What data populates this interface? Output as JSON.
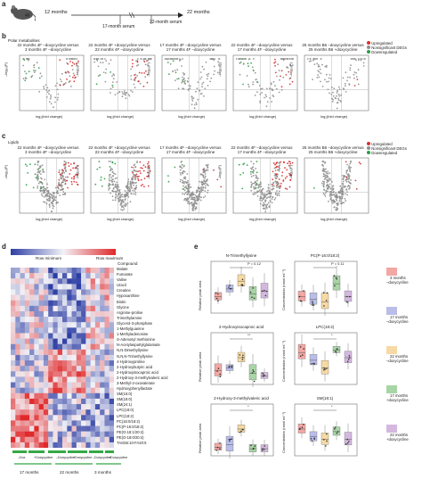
{
  "panel_a": {
    "letter": "a",
    "group": "4F",
    "t12": "12 months",
    "t17": "17-month serum",
    "t22": "22 months",
    "t22serum": "22-month serum"
  },
  "panel_b": {
    "letter": "b",
    "subtitle": "Polar metabolites",
    "plots": [
      {
        "title1": "22 months 4F –doxycycline versus",
        "title2": "3 months 4F –doxycycline"
      },
      {
        "title1": "22 months 4F +doxycycline versus",
        "title2": "22 months 4F –doxycycline"
      },
      {
        "title1": "17 months 4F –doxycycline versus",
        "title2": "17 months 4F –doxycycline"
      },
      {
        "title1": "22 months 4F –doxycycline versus",
        "title2": "17 months 4F –doxycycline"
      },
      {
        "title1": "25 months B6 –doxycycline versus",
        "title2": "25 months B6 +doxycycline"
      }
    ],
    "ylabel": "–log₁₀(P)",
    "xlabel": "log₂(fold change)",
    "legend": [
      "Upregulated",
      "Nonsignificant DEGs",
      "Downregulated"
    ]
  },
  "panel_c": {
    "letter": "c",
    "subtitle": "Lipids",
    "plots": [
      {
        "title1": "22 months 4F –doxycycline versus",
        "title2": "3 months 4F –doxycycline"
      },
      {
        "title1": "22 months 4F +doxycycline versus",
        "title2": "22 months 4F –doxycycline"
      },
      {
        "title1": "17 months 4F –doxycycline versus",
        "title2": "17 months 4F –doxycycline"
      },
      {
        "title1": "22 months 4F –doxycycline versus",
        "title2": "17 months 4F –doxycycline"
      },
      {
        "title1": "25 months B6 –doxycycline versus",
        "title2": "25 months B6 +doxycycline"
      }
    ],
    "ylabel": "–log₁₀(P)",
    "xlabel": "log₂(fold change)",
    "legend": [
      "Upregulated",
      "Nonsignificant DEGs",
      "Downregulated"
    ]
  },
  "panel_d": {
    "letter": "d",
    "row_min": "Row minimum",
    "row_max": "Row maximum",
    "compound_header": "Compound",
    "compounds": [
      "Malate",
      "Fumarate",
      "Valine",
      "Uracil",
      "Creatine",
      "Hypoxanthine",
      "Biotin",
      "Glycine",
      "Arginine-proline",
      "Trimethylamine",
      "Glycerol-3-phosphate",
      "1-Methylguanine",
      "1-Methyladenosine",
      "S-Adenosyl methionine",
      "N-Acetylaspartylglutamate",
      "N,N-Dimethyllysine",
      "N,N,N-Trimethyllysine",
      "4-Hydroxyproline",
      "2-Hydroxybutyric acid",
      "2-Hydroxyisocaproic acid",
      "2-Hydroxy-3-methylvaleric acid",
      "3-Methyl-2-oxovalerate",
      "Hydroxyphenyllactate",
      "SM(16:0)",
      "SM(18:0)",
      "SM(24:1)",
      "LPC(18:0)",
      "LPC(18:2)",
      "PC(16:0/18:2)",
      "PC(P-16:0/18:2)",
      "PE(O-18:1/20:4)",
      "PE(O-18:0/20:4)",
      "TAG56:10-FA20:5"
    ],
    "group_labels": [
      "–Dox",
      "+Doxycycline",
      "–Doxycycline",
      "+Doxycycline",
      "–Doxycycline",
      "+Doxycycline"
    ],
    "time_labels": [
      "17 months",
      "22 months",
      "3 months"
    ]
  },
  "panel_e": {
    "letter": "e",
    "plots": [
      {
        "title": "N-Trimethyllysine",
        "ylabel": "Relative peak area",
        "pval": "P = 0.12"
      },
      {
        "title": "PC(P-16:0/18:2)",
        "ylabel": "Concentration (nmol ml⁻¹)",
        "pval": "P = 0.11"
      },
      {
        "title": "2-Hydroxyisocaproic acid",
        "ylabel": "Relative peak area",
        "pval": "**"
      },
      {
        "title": "LPC(18:2)",
        "ylabel": "Concentration (nmol ml⁻¹)",
        "pval": "*"
      },
      {
        "title": "2-Hydroxy-3-methylvaleric acid",
        "ylabel": "Relative peak area",
        "pval": "*"
      },
      {
        "title": "SM(18:1)",
        "ylabel": "Concentration (nmol ml⁻¹)",
        "pval": "*"
      }
    ],
    "legend": [
      {
        "l1": "3 months",
        "l2": "–doxycycline",
        "color": "#f2a7a3"
      },
      {
        "l1": "17 months",
        "l2": "–doxycycline",
        "color": "#b9bde8"
      },
      {
        "l1": "22 months",
        "l2": "–doxycycline",
        "color": "#f7d9a3"
      },
      {
        "l1": "17 months",
        "l2": "+doxycycline",
        "color": "#a8d5a5"
      },
      {
        "l1": "22 months",
        "l2": "+doxycycline",
        "color": "#d4b8e0"
      }
    ]
  },
  "colors": {
    "up": "#d7302f",
    "down": "#2e9e44",
    "ns": "#8f8f8f",
    "heat_low": "#2d3ea3",
    "heat_high": "#e0292a",
    "group_bar": "#35a845"
  }
}
